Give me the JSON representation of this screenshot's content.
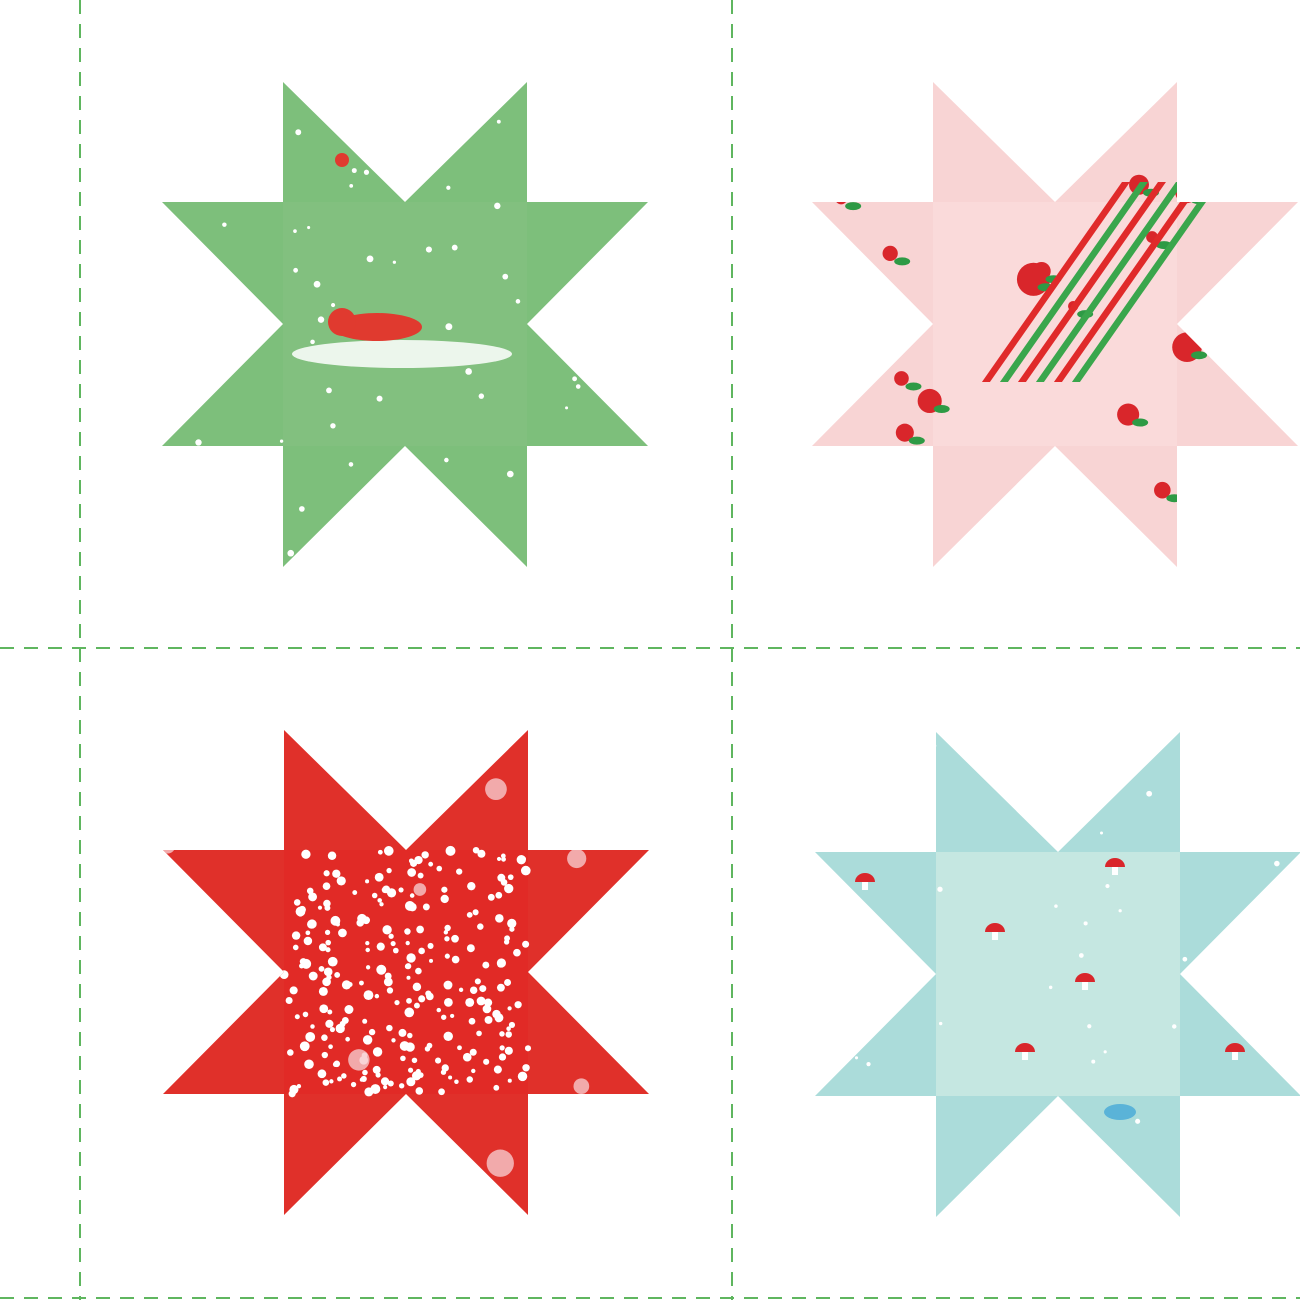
{
  "panel": {
    "cut_line_color": "#5fb65f",
    "stars": [
      {
        "name": "green-elf-star",
        "outer": "#7dbf7b",
        "center": "#82c07f",
        "accent": "#e03a2f",
        "pattern": "snow"
      },
      {
        "name": "pink-poinsettia-star",
        "outer": "#f8d4d4",
        "center": "#fadada",
        "accent": "#d9262b",
        "pattern": "floral"
      },
      {
        "name": "red-snow-dot-star",
        "outer": "#e0302a",
        "center": "#e12a26",
        "accent": "#ffffff",
        "pattern": "dots"
      },
      {
        "name": "aqua-mushroom-star",
        "outer": "#abdcda",
        "center": "#c5e7e1",
        "accent": "#d9262b",
        "pattern": "mushrooms"
      }
    ]
  }
}
